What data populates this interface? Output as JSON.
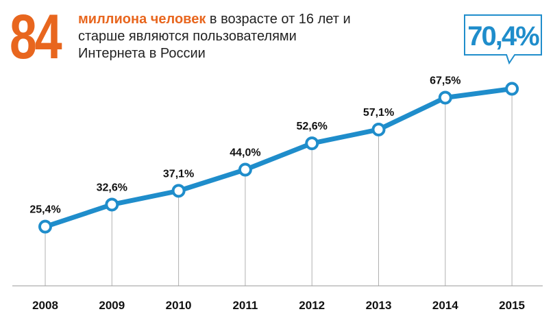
{
  "headline": {
    "number": "84",
    "highlight": "миллиона человек",
    "rest": " в возрасте от 16 лет и старше являются пользователями Интернета в России"
  },
  "colors": {
    "accent": "#e8661e",
    "line": "#1f8dcb",
    "marker_fill": "#ffffff",
    "drop_line": "#b0b0b0",
    "axis": "#999999",
    "text": "#111111"
  },
  "chart_data": {
    "type": "line",
    "categories": [
      "2008",
      "2009",
      "2010",
      "2011",
      "2012",
      "2013",
      "2014",
      "2015"
    ],
    "values": [
      25.4,
      32.6,
      37.1,
      44.0,
      52.6,
      57.1,
      67.5,
      70.4
    ],
    "labels": [
      "25,4%",
      "32,6%",
      "37,1%",
      "44,0%",
      "52,6%",
      "57,1%",
      "67,5%",
      "70,4%"
    ],
    "highlight_index": 7,
    "ylim": [
      0,
      80
    ],
    "grid": false,
    "legend": "none"
  }
}
